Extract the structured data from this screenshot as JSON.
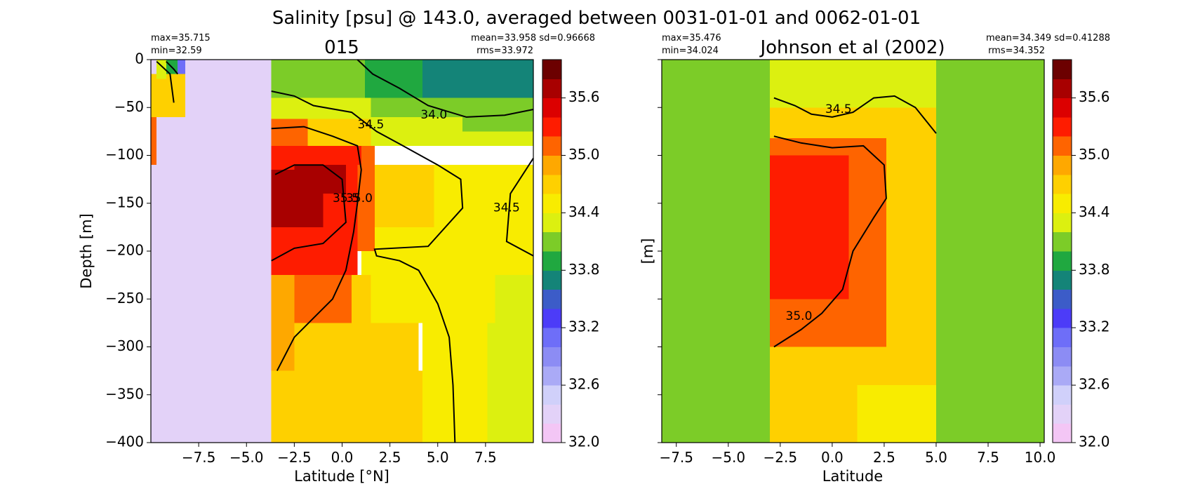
{
  "suptitle": "Salinity [psu] @ 143.0, averaged between 0031-01-01 and 0062-01-01",
  "colorbar": {
    "ticks": [
      "32.0",
      "32.6",
      "33.2",
      "33.8",
      "34.4",
      "35.0",
      "35.6"
    ],
    "tick_values": [
      32.0,
      32.6,
      33.2,
      33.8,
      34.4,
      35.0,
      35.6
    ],
    "min": 32.0,
    "max": 36.0,
    "colors": [
      "#f3c6f5",
      "#e3d2f8",
      "#d0d0fa",
      "#aaaaf6",
      "#8c8cf4",
      "#6e6ef8",
      "#4c3cf8",
      "#3c5cc8",
      "#148478",
      "#20a840",
      "#7ccc28",
      "#dcf010",
      "#f8ec00",
      "#fed000",
      "#fea800",
      "#fe6400",
      "#fe1c00",
      "#dc0000",
      "#a80000",
      "#6c0000"
    ]
  },
  "chart_data": [
    {
      "type": "heatmap",
      "title": "015",
      "xlabel": "Latitude [°N]",
      "ylabel": "Depth [m]",
      "xlim": [
        -10,
        10
      ],
      "ylim": [
        -400,
        0
      ],
      "xticks": [
        "−7.5",
        "−5.0",
        "−2.5",
        "0.0",
        "2.5",
        "5.0",
        "7.5"
      ],
      "xtick_values": [
        -7.5,
        -5.0,
        -2.5,
        0.0,
        2.5,
        5.0,
        7.5
      ],
      "yticks": [
        "0",
        "−50",
        "−100",
        "−150",
        "−200",
        "−250",
        "−300",
        "−350",
        "−400"
      ],
      "ytick_values": [
        0,
        -50,
        -100,
        -150,
        -200,
        -250,
        -300,
        -350,
        -400
      ],
      "stats_left": [
        "max=35.715",
        "min=32.59"
      ],
      "stats_right": [
        "mean=33.958 sd=0.96668",
        "rms=33.972"
      ],
      "regions": [
        {
          "x": [
            -10,
            -3.7
          ],
          "y": [
            -400,
            0
          ],
          "value": 32.4
        },
        {
          "x": [
            -3.7,
            4.2
          ],
          "y": [
            -400,
            -325
          ],
          "value": 34.7
        },
        {
          "x": [
            4.2,
            7.6
          ],
          "y": [
            -400,
            -225
          ],
          "value": 34.5
        },
        {
          "x": [
            7.6,
            10
          ],
          "y": [
            -400,
            -225
          ],
          "value": 34.3
        },
        {
          "x": [
            -3.7,
            4.0
          ],
          "y": [
            -325,
            -275
          ],
          "value": 34.6
        },
        {
          "x": [
            1.0,
            8.0
          ],
          "y": [
            -275,
            -110
          ],
          "value": 34.5
        },
        {
          "x": [
            8.0,
            10
          ],
          "y": [
            -225,
            -110
          ],
          "value": 34.5
        },
        {
          "x": [
            1.0,
            4.8
          ],
          "y": [
            -175,
            -110
          ],
          "value": 34.7
        },
        {
          "x": [
            -3.7,
            -2.5
          ],
          "y": [
            -325,
            -225
          ],
          "value": 34.9
        },
        {
          "x": [
            -2.5,
            -1.5
          ],
          "y": [
            -275,
            -225
          ],
          "value": 35.0
        },
        {
          "x": [
            -1.5,
            0.5
          ],
          "y": [
            -275,
            -225
          ],
          "value": 35.1
        },
        {
          "x": [
            0.5,
            1.5
          ],
          "y": [
            -275,
            -225
          ],
          "value": 34.8
        },
        {
          "x": [
            -3.7,
            0.8
          ],
          "y": [
            -225,
            -65
          ],
          "value": 35.3
        },
        {
          "x": [
            -3.7,
            0.8
          ],
          "y": [
            -225,
            -175
          ],
          "value": 35.4
        },
        {
          "x": [
            -3.7,
            -1.0
          ],
          "y": [
            -175,
            -115
          ],
          "value": 35.6
        },
        {
          "x": [
            -2.5,
            0.2
          ],
          "y": [
            -140,
            -110
          ],
          "value": 35.7
        },
        {
          "x": [
            0.8,
            1.7
          ],
          "y": [
            -200,
            -90
          ],
          "value": 35.0
        },
        {
          "x": [
            -3.7,
            1.0
          ],
          "y": [
            -110,
            -90
          ],
          "value": 35.2
        },
        {
          "x": [
            -1.8,
            2.2
          ],
          "y": [
            -90,
            -60
          ],
          "value": 34.8
        },
        {
          "x": [
            -3.7,
            -1.8
          ],
          "y": [
            -90,
            -62
          ],
          "value": 35.0
        },
        {
          "x": [
            -3.7,
            1.5
          ],
          "y": [
            -62,
            -40
          ],
          "value": 34.4
        },
        {
          "x": [
            1.5,
            10
          ],
          "y": [
            -90,
            -60
          ],
          "value": 34.3
        },
        {
          "x": [
            6.3,
            10
          ],
          "y": [
            -75,
            -60
          ],
          "value": 34.1
        },
        {
          "x": [
            1.5,
            10
          ],
          "y": [
            -60,
            -40
          ],
          "value": 34.1
        },
        {
          "x": [
            -3.7,
            1.2
          ],
          "y": [
            -40,
            0
          ],
          "value": 34.1
        },
        {
          "x": [
            1.2,
            4.2
          ],
          "y": [
            -40,
            0
          ],
          "value": 33.9
        },
        {
          "x": [
            4.2,
            10
          ],
          "y": [
            -40,
            0
          ],
          "value": 33.85
        },
        {
          "x": [
            4.2,
            10
          ],
          "y": [
            -40,
            0
          ],
          "value": 33.8
        },
        {
          "x": [
            -10,
            -9.7
          ],
          "y": [
            -110,
            -60
          ],
          "value": 35.0
        },
        {
          "x": [
            -10,
            -8.2
          ],
          "y": [
            -60,
            -15
          ],
          "value": 34.8
        },
        {
          "x": [
            -9.7,
            -9.2
          ],
          "y": [
            -20,
            0
          ],
          "value": 34.4
        },
        {
          "x": [
            -9.2,
            -8.6
          ],
          "y": [
            -15,
            0
          ],
          "value": 33.9
        },
        {
          "x": [
            -8.6,
            -8.2
          ],
          "y": [
            -15,
            0
          ],
          "value": 33.1
        }
      ],
      "contours": [
        {
          "label": "34.0",
          "points": [
            [
              0.8,
              0
            ],
            [
              1.6,
              -15
            ],
            [
              3.0,
              -30
            ],
            [
              4.5,
              -48
            ],
            [
              6.5,
              -60
            ],
            [
              8.5,
              -58
            ],
            [
              10,
              -52
            ]
          ],
          "label_at": [
            4.8,
            -58
          ]
        },
        {
          "label": "34.5",
          "points": [
            [
              -3.7,
              -33
            ],
            [
              -2.5,
              -38
            ],
            [
              -1.5,
              -48
            ],
            [
              0.5,
              -55
            ],
            [
              1.8,
              -75
            ],
            [
              3.0,
              -88
            ],
            [
              5.0,
              -110
            ],
            [
              6.2,
              -125
            ],
            [
              6.3,
              -155
            ],
            [
              4.5,
              -195
            ],
            [
              1.7,
              -198
            ],
            [
              1.8,
              -205
            ],
            [
              3.0,
              -210
            ],
            [
              4.0,
              -220
            ],
            [
              5.0,
              -255
            ],
            [
              5.6,
              -290
            ],
            [
              5.8,
              -340
            ],
            [
              5.9,
              -400
            ]
          ],
          "label_at": [
            1.5,
            -68
          ]
        },
        {
          "label": "34.5",
          "points": [
            [
              10,
              -103
            ],
            [
              8.8,
              -140
            ],
            [
              8.6,
              -190
            ],
            [
              10,
              -205
            ]
          ],
          "label_at": [
            8.6,
            -155
          ]
        },
        {
          "label": "35.0",
          "points": [
            [
              -3.7,
              -72
            ],
            [
              -2.0,
              -70
            ],
            [
              -0.5,
              -80
            ],
            [
              0.8,
              -90
            ],
            [
              1.0,
              -115
            ],
            [
              0.8,
              -150
            ],
            [
              0.6,
              -180
            ],
            [
              0.2,
              -220
            ],
            [
              -0.5,
              -250
            ],
            [
              -1.5,
              -270
            ],
            [
              -2.5,
              -290
            ],
            [
              -3.4,
              -325
            ]
          ],
          "label_at": [
            0.9,
            -145
          ]
        },
        {
          "label": "35.5",
          "points": [
            [
              -3.7,
              -210
            ],
            [
              -2.5,
              -197
            ],
            [
              -1.0,
              -192
            ],
            [
              0.2,
              -170
            ],
            [
              0,
              -125
            ],
            [
              -1.0,
              -110
            ],
            [
              -2.5,
              -110
            ],
            [
              -3.5,
              -120
            ]
          ],
          "label_at": [
            0.2,
            -145
          ]
        },
        {
          "label": "",
          "points": [
            [
              -9.7,
              -2
            ],
            [
              -9.0,
              -15
            ],
            [
              -8.8,
              -45
            ]
          ],
          "label_at": null
        },
        {
          "label": "",
          "points": [
            [
              -9.2,
              -2
            ],
            [
              -8.8,
              -10
            ],
            [
              -8.6,
              -15
            ]
          ],
          "label_at": null
        }
      ]
    },
    {
      "type": "heatmap",
      "title": "Johnson et al (2002)",
      "xlabel": "Latitude",
      "ylabel": "[m]",
      "xlim": [
        -8.2,
        10.2
      ],
      "ylim": [
        -400,
        0
      ],
      "xticks": [
        "−7.5",
        "−5.0",
        "−2.5",
        "0.0",
        "2.5",
        "5.0",
        "7.5",
        "10.0"
      ],
      "xtick_values": [
        -7.5,
        -5.0,
        -2.5,
        0.0,
        2.5,
        5.0,
        7.5,
        10.0
      ],
      "yticks": [],
      "ytick_values": [
        0,
        -50,
        -100,
        -150,
        -200,
        -250,
        -300,
        -350,
        -400
      ],
      "stats_left": [
        "max=35.476",
        "min=34.024"
      ],
      "stats_right": [
        "mean=34.349 sd=0.41288",
        "rms=34.352"
      ],
      "regions": [
        {
          "x": [
            -8.2,
            10.2
          ],
          "y": [
            -400,
            0
          ],
          "value": 34.1
        },
        {
          "x": [
            -3.0,
            5.0
          ],
          "y": [
            -400,
            -340
          ],
          "value": 34.7
        },
        {
          "x": [
            1.2,
            5.0
          ],
          "y": [
            -400,
            -320
          ],
          "value": 34.5
        },
        {
          "x": [
            -3.0,
            5.0
          ],
          "y": [
            -340,
            -50
          ],
          "value": 34.8
        },
        {
          "x": [
            3.0,
            5.0
          ],
          "y": [
            -320,
            -80
          ],
          "value": 34.7
        },
        {
          "x": [
            -3.0,
            5.0
          ],
          "y": [
            -50,
            -10
          ],
          "value": 34.4
        },
        {
          "x": [
            -3.0,
            5.0
          ],
          "y": [
            -25,
            0
          ],
          "value": 34.3
        },
        {
          "x": [
            -3.0,
            2.6
          ],
          "y": [
            -300,
            -82
          ],
          "value": 35.05
        },
        {
          "x": [
            -3.0,
            0.8
          ],
          "y": [
            -250,
            -100
          ],
          "value": 35.25
        },
        {
          "x": [
            -3.0,
            -0.5
          ],
          "y": [
            -215,
            -130
          ],
          "value": 35.4
        }
      ],
      "contours": [
        {
          "label": "34.5",
          "points": [
            [
              -2.8,
              -40
            ],
            [
              -1.8,
              -48
            ],
            [
              -1.0,
              -57
            ],
            [
              0,
              -60
            ],
            [
              1.0,
              -55
            ],
            [
              2.0,
              -40
            ],
            [
              3.0,
              -38
            ],
            [
              4.0,
              -50
            ],
            [
              5.0,
              -77
            ]
          ],
          "label_at": [
            0.3,
            -52
          ]
        },
        {
          "label": "35.0",
          "points": [
            [
              -2.8,
              -80
            ],
            [
              -1.5,
              -87
            ],
            [
              0,
              -92
            ],
            [
              1.5,
              -90
            ],
            [
              2.5,
              -110
            ],
            [
              2.6,
              -145
            ],
            [
              2.0,
              -165
            ],
            [
              1.0,
              -200
            ],
            [
              0.5,
              -240
            ],
            [
              -0.5,
              -265
            ],
            [
              -1.5,
              -282
            ],
            [
              -2.8,
              -300
            ]
          ],
          "label_at": [
            -1.6,
            -268
          ]
        }
      ]
    }
  ]
}
